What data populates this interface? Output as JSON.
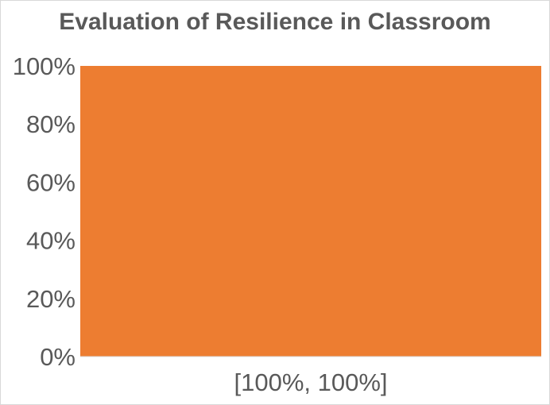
{
  "chart_data": {
    "type": "bar",
    "title": "Evaluation of Resilience in Classroom",
    "xlabel": "",
    "ylabel": "",
    "categories": [
      "[100%, 100%]"
    ],
    "series": [
      {
        "values": [
          100
        ]
      }
    ],
    "ylim": [
      0,
      100
    ],
    "yticks": [
      "0%",
      "20%",
      "40%",
      "60%",
      "80%",
      "100%"
    ],
    "grid": false,
    "legend": "none",
    "colors": {
      "bar": "#ed7d31",
      "axis": "#d9d9d9",
      "text": "#595959"
    }
  }
}
